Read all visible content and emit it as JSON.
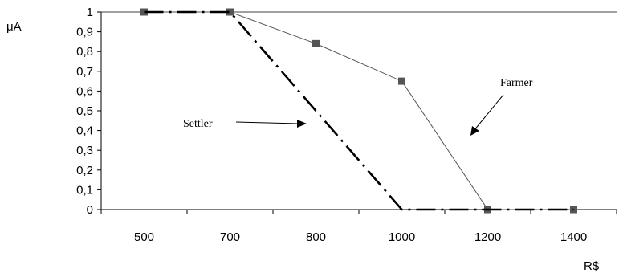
{
  "chart_data": {
    "type": "line",
    "title": "",
    "ylabel": "μA",
    "xlabel": "R$",
    "ylim": [
      0,
      1
    ],
    "y_ticks": [
      "0",
      "0,1",
      "0,2",
      "0,3",
      "0,4",
      "0,5",
      "0,6",
      "0,7",
      "0,8",
      "0,9",
      "1"
    ],
    "categories": [
      "500",
      "700",
      "800",
      "1000",
      "1200",
      "1400"
    ],
    "grid": false,
    "series": [
      {
        "name": "Farmer",
        "style": "solid-thin-with-square-markers",
        "color": "#555555",
        "values": [
          1,
          1,
          0.84,
          0.65,
          0,
          0
        ]
      },
      {
        "name": "Settler",
        "style": "dash-dot-thick",
        "color": "#000000",
        "values": [
          1,
          1,
          0.5,
          0,
          0,
          0
        ]
      }
    ],
    "annotations": [
      {
        "text": "Farmer",
        "points_to_series": "Farmer"
      },
      {
        "text": "Settler",
        "points_to_series": "Settler"
      }
    ]
  }
}
